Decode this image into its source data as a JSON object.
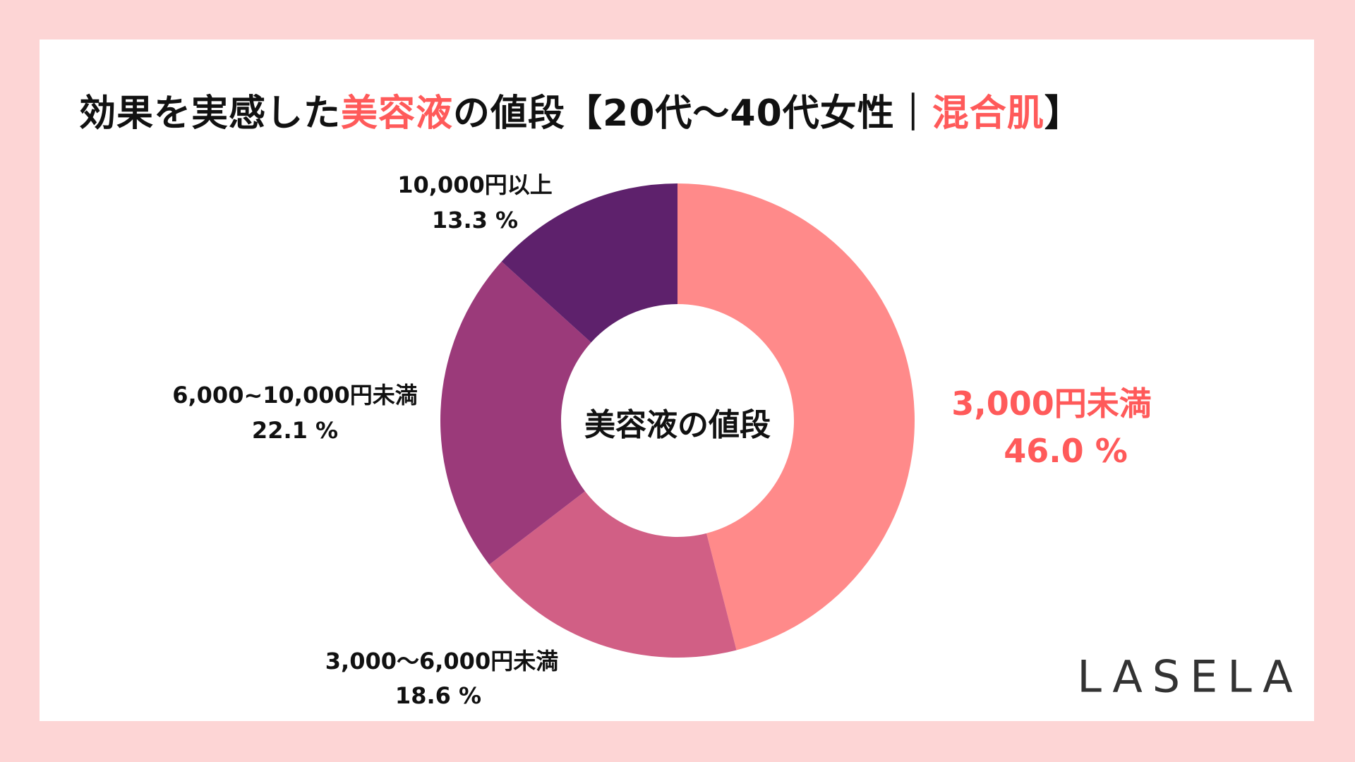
{
  "title": {
    "part1": "効果を実感した",
    "highlight1": "美容液",
    "part2": "の値段【20代〜40代女性｜",
    "highlight2": "混合肌",
    "part3": "】"
  },
  "logo": "LASELA",
  "chart_data": {
    "type": "pie",
    "donut": true,
    "center_label": "美容液の値段",
    "start": "top, clockwise",
    "slices": [
      {
        "label": "3,000円未満",
        "value": 46.0,
        "value_label": "46.0 %",
        "color": "#FF8A8A"
      },
      {
        "label": "3,000〜6,000円未満",
        "value": 18.6,
        "value_label": "18.6 %",
        "color": "#D15F85"
      },
      {
        "label": "6,000~10,000円未満",
        "value": 22.1,
        "value_label": "22.1 %",
        "color": "#9B3A7A"
      },
      {
        "label": "10,000円以上",
        "value": 13.3,
        "value_label": "13.3 %",
        "color": "#5E216C"
      }
    ],
    "highlight_color": "#FF5A5A"
  }
}
